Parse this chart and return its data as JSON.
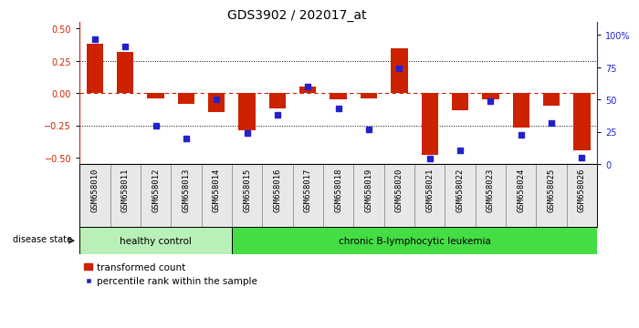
{
  "title": "GDS3902 / 202017_at",
  "categories": [
    "GSM658010",
    "GSM658011",
    "GSM658012",
    "GSM658013",
    "GSM658014",
    "GSM658015",
    "GSM658016",
    "GSM658017",
    "GSM658018",
    "GSM658019",
    "GSM658020",
    "GSM658021",
    "GSM658022",
    "GSM658023",
    "GSM658024",
    "GSM658025",
    "GSM658026"
  ],
  "red_values": [
    0.38,
    0.32,
    -0.04,
    -0.08,
    -0.15,
    -0.29,
    -0.12,
    0.05,
    -0.05,
    -0.04,
    0.35,
    -0.48,
    -0.13,
    -0.05,
    -0.27,
    -0.1,
    -0.44
  ],
  "blue_values_pct": [
    97,
    91,
    30,
    20,
    50,
    24,
    38,
    60,
    43,
    27,
    74,
    4,
    11,
    49,
    23,
    32,
    5
  ],
  "healthy_control_range": [
    0,
    4
  ],
  "leukemia_range": [
    5,
    16
  ],
  "healthy_label": "healthy control",
  "leukemia_label": "chronic B-lymphocytic leukemia",
  "disease_state_label": "disease state",
  "legend_red": "transformed count",
  "legend_blue": "percentile rank within the sample",
  "red_color": "#cc2200",
  "blue_color": "#2222cc",
  "healthy_bg": "#b8f0b8",
  "leukemia_bg": "#44dd44",
  "bar_width": 0.55,
  "blue_marker_size": 4,
  "ylim_left": [
    -0.55,
    0.55
  ],
  "ylim_right": [
    0,
    110
  ],
  "yticks_left": [
    -0.5,
    -0.25,
    0,
    0.25,
    0.5
  ],
  "yticks_right": [
    0,
    25,
    50,
    75,
    100
  ],
  "ytick_right_labels": [
    "0",
    "25",
    "50",
    "75",
    "100%"
  ],
  "hline_y": [
    0.25,
    -0.25
  ],
  "title_fontsize": 10,
  "tick_fontsize": 6.5,
  "label_fontsize": 7.5,
  "axis_label_fontsize": 7
}
